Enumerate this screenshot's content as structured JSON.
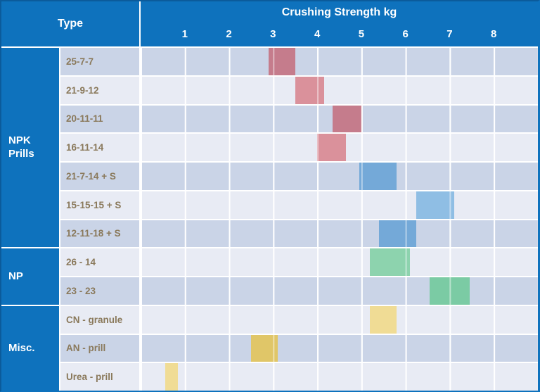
{
  "header": {
    "type_label": "Type",
    "axis_title": "Crushing Strength kg"
  },
  "groups": [
    {
      "label": "NPK Prills",
      "row_span": 7
    },
    {
      "label": "NP",
      "row_span": 2
    },
    {
      "label": "Misc.",
      "row_span": 3
    }
  ],
  "colors": {
    "header_blue": "#0E72BD",
    "outer_border_dark_blue": "#0B5B9B",
    "row_stripe_dark": "#CAD4E7",
    "row_stripe_light": "#E8EBF4",
    "row_label_text": "#8A795B",
    "axis_text": "#FFFFFF"
  },
  "chart_data": {
    "type": "bar",
    "subtype": "horizontal-range-bars",
    "title": "Crushing Strength kg",
    "xlabel": "Crushing Strength kg",
    "ylabel": "Type",
    "xlim": [
      0,
      9
    ],
    "xticks": [
      1,
      2,
      3,
      4,
      5,
      6,
      7,
      8
    ],
    "grid": true,
    "unit": "kg",
    "rows": [
      {
        "group": "NPK Prills",
        "label": "25-7-7",
        "range_kg": [
          2.9,
          3.5
        ],
        "color": "#C57C8C"
      },
      {
        "group": "NPK Prills",
        "label": "21-9-12",
        "range_kg": [
          3.5,
          4.15
        ],
        "color": "#DA919B"
      },
      {
        "group": "NPK Prills",
        "label": "20-11-11",
        "range_kg": [
          4.35,
          5.0
        ],
        "color": "#C57C8C"
      },
      {
        "group": "NPK Prills",
        "label": "16-11-14",
        "range_kg": [
          4.0,
          4.65
        ],
        "color": "#DA919B"
      },
      {
        "group": "NPK Prills",
        "label": "21-7-14 + S",
        "range_kg": [
          4.95,
          5.8
        ],
        "color": "#74A9D8"
      },
      {
        "group": "NPK Prills",
        "label": "15-15-15 + S",
        "range_kg": [
          6.25,
          7.1
        ],
        "color": "#8FBEE4"
      },
      {
        "group": "NPK Prills",
        "label": "12-11-18 + S",
        "range_kg": [
          5.4,
          6.25
        ],
        "color": "#74A9D8"
      },
      {
        "group": "NP",
        "label": "26 - 14",
        "range_kg": [
          5.2,
          6.1
        ],
        "color": "#8DD3AE"
      },
      {
        "group": "NP",
        "label": "23 - 23",
        "range_kg": [
          6.55,
          7.45
        ],
        "color": "#7BCBA4"
      },
      {
        "group": "Misc.",
        "label": "CN - granule",
        "range_kg": [
          5.2,
          5.8
        ],
        "color": "#F0DC95"
      },
      {
        "group": "Misc.",
        "label": "AN - prill",
        "range_kg": [
          2.5,
          3.1
        ],
        "color": "#E0C668"
      },
      {
        "group": "Misc.",
        "label": "Urea - prill",
        "range_kg": [
          0.55,
          0.85
        ],
        "color": "#F0DC95"
      }
    ]
  }
}
